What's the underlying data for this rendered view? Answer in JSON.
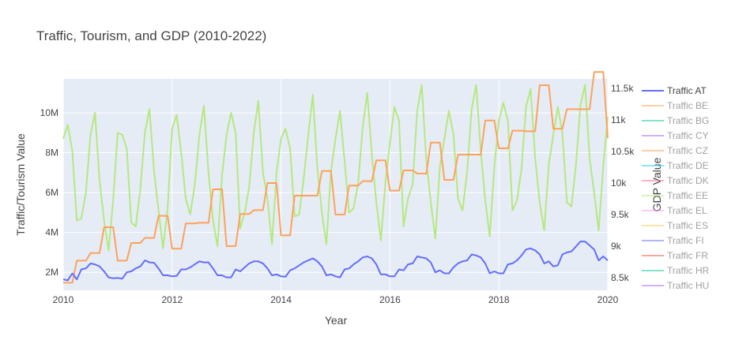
{
  "chart_data": {
    "type": "line",
    "title": "Traffic, Tourism, and GDP (2010-2022)",
    "xlabel": "Year",
    "ylabel_left": "Traffic/Tourism Value",
    "ylabel_right": "GDP Value",
    "xlim": [
      2010,
      2020
    ],
    "x_ticks": [
      2010,
      2012,
      2014,
      2016,
      2018,
      2020
    ],
    "x_tick_labels": [
      "2010",
      "2012",
      "2014",
      "2016",
      "2018",
      "2020"
    ],
    "y_left_lim": [
      1100000,
      11700000
    ],
    "y_left_ticks": [
      2000000,
      4000000,
      6000000,
      8000000,
      10000000
    ],
    "y_left_tick_labels": [
      "2M",
      "4M",
      "6M",
      "8M",
      "10M"
    ],
    "y_right_lim": [
      8300,
      11650
    ],
    "y_right_ticks": [
      8500,
      9000,
      9500,
      10000,
      10500,
      11000,
      11500
    ],
    "y_right_tick_labels": [
      "8.5k",
      "9k",
      "9.5k",
      "10k",
      "10.5k",
      "11k",
      "11.5k"
    ],
    "grid": true,
    "legend_position": "right",
    "plot_background": "#e5ecf6",
    "series": [
      {
        "name": "Traffic AT",
        "axis": "left",
        "color": "#636efa",
        "x": [
          2010.0,
          2010.083,
          2010.167,
          2010.25,
          2010.333,
          2010.417,
          2010.5,
          2010.583,
          2010.667,
          2010.75,
          2010.833,
          2010.917,
          2011.0,
          2011.083,
          2011.167,
          2011.25,
          2011.333,
          2011.417,
          2011.5,
          2011.583,
          2011.667,
          2011.75,
          2011.833,
          2011.917,
          2012.0,
          2012.083,
          2012.167,
          2012.25,
          2012.333,
          2012.417,
          2012.5,
          2012.583,
          2012.667,
          2012.75,
          2012.833,
          2012.917,
          2013.0,
          2013.083,
          2013.167,
          2013.25,
          2013.333,
          2013.417,
          2013.5,
          2013.583,
          2013.667,
          2013.75,
          2013.833,
          2013.917,
          2014.0,
          2014.083,
          2014.167,
          2014.25,
          2014.333,
          2014.417,
          2014.5,
          2014.583,
          2014.667,
          2014.75,
          2014.833,
          2014.917,
          2015.0,
          2015.083,
          2015.167,
          2015.25,
          2015.333,
          2015.417,
          2015.5,
          2015.583,
          2015.667,
          2015.75,
          2015.833,
          2015.917,
          2016.0,
          2016.083,
          2016.167,
          2016.25,
          2016.333,
          2016.417,
          2016.5,
          2016.583,
          2016.667,
          2016.75,
          2016.833,
          2016.917,
          2017.0,
          2017.083,
          2017.167,
          2017.25,
          2017.333,
          2017.417,
          2017.5,
          2017.583,
          2017.667,
          2017.75,
          2017.833,
          2017.917,
          2018.0,
          2018.083,
          2018.167,
          2018.25,
          2018.333,
          2018.417,
          2018.5,
          2018.583,
          2018.667,
          2018.75,
          2018.833,
          2018.917,
          2019.0,
          2019.083,
          2019.167,
          2019.25,
          2019.333,
          2019.417,
          2019.5,
          2019.583,
          2019.667,
          2019.75,
          2019.833,
          2019.917,
          2020.0
        ],
        "y": [
          1650000,
          1600000,
          1950000,
          1650000,
          2150000,
          2200000,
          2450000,
          2400000,
          2300000,
          2050000,
          1750000,
          1700000,
          1720000,
          1680000,
          2000000,
          2050000,
          2200000,
          2300000,
          2600000,
          2500000,
          2480000,
          2200000,
          1850000,
          1850000,
          1800000,
          1820000,
          2150000,
          2150000,
          2250000,
          2400000,
          2550000,
          2500000,
          2500000,
          2200000,
          1850000,
          1850000,
          1750000,
          1750000,
          2150000,
          2050000,
          2250000,
          2450000,
          2550000,
          2550000,
          2450000,
          2200000,
          1850000,
          1900000,
          1800000,
          1780000,
          2100000,
          2200000,
          2350000,
          2500000,
          2600000,
          2700000,
          2550000,
          2300000,
          1850000,
          1900000,
          1800000,
          1750000,
          2150000,
          2200000,
          2400000,
          2550000,
          2750000,
          2800000,
          2700000,
          2400000,
          1900000,
          1900000,
          1800000,
          1800000,
          2150000,
          2100000,
          2400000,
          2450000,
          2800000,
          2750000,
          2700000,
          2500000,
          2000000,
          2100000,
          1950000,
          1950000,
          2250000,
          2450000,
          2550000,
          2600000,
          2900000,
          2850000,
          2750000,
          2450000,
          1950000,
          2050000,
          1950000,
          1950000,
          2400000,
          2450000,
          2600000,
          2850000,
          3150000,
          3200000,
          3100000,
          2900000,
          2450000,
          2550000,
          2300000,
          2350000,
          2900000,
          3000000,
          3050000,
          3300000,
          3550000,
          3550000,
          3350000,
          3150000,
          2600000,
          2800000,
          2600000
        ]
      },
      {
        "name": "Traffic BE",
        "axis": "right",
        "color": "#ffa15a",
        "x": [
          2010.0,
          2010.083,
          2010.167,
          2010.25,
          2010.333,
          2010.417,
          2010.5,
          2010.583,
          2010.667,
          2010.75,
          2010.833,
          2010.917,
          2011.0,
          2011.083,
          2011.167,
          2011.25,
          2011.333,
          2011.417,
          2011.5,
          2011.583,
          2011.667,
          2011.75,
          2011.833,
          2011.917,
          2012.0,
          2012.083,
          2012.167,
          2012.25,
          2012.333,
          2012.417,
          2012.5,
          2012.583,
          2012.667,
          2012.75,
          2012.833,
          2012.917,
          2013.0,
          2013.083,
          2013.167,
          2013.25,
          2013.333,
          2013.417,
          2013.5,
          2013.583,
          2013.667,
          2013.75,
          2013.833,
          2013.917,
          2014.0,
          2014.083,
          2014.167,
          2014.25,
          2014.333,
          2014.417,
          2014.5,
          2014.583,
          2014.667,
          2014.75,
          2014.833,
          2014.917,
          2015.0,
          2015.083,
          2015.167,
          2015.25,
          2015.333,
          2015.417,
          2015.5,
          2015.583,
          2015.667,
          2015.75,
          2015.833,
          2015.917,
          2016.0,
          2016.083,
          2016.167,
          2016.25,
          2016.333,
          2016.417,
          2016.5,
          2016.583,
          2016.667,
          2016.75,
          2016.833,
          2016.917,
          2017.0,
          2017.083,
          2017.167,
          2017.25,
          2017.333,
          2017.417,
          2017.5,
          2017.583,
          2017.667,
          2017.75,
          2017.833,
          2017.917,
          2018.0,
          2018.083,
          2018.167,
          2018.25,
          2018.333,
          2018.417,
          2018.5,
          2018.583,
          2018.667,
          2018.75,
          2018.833,
          2018.917,
          2019.0,
          2019.083,
          2019.167,
          2019.25,
          2019.333,
          2019.417,
          2019.5,
          2019.583,
          2019.667,
          2019.75,
          2019.833,
          2019.917,
          2020.0
        ],
        "y": [
          8420,
          8420,
          8420,
          8770,
          8770,
          8770,
          8890,
          8890,
          8890,
          9300,
          9300,
          9300,
          8770,
          8770,
          8770,
          9050,
          9050,
          9050,
          9130,
          9130,
          9130,
          9480,
          9480,
          9480,
          8960,
          8960,
          8960,
          9360,
          9360,
          9360,
          9370,
          9370,
          9370,
          9900,
          9900,
          9900,
          9000,
          9000,
          9000,
          9510,
          9510,
          9510,
          9570,
          9570,
          9570,
          10000,
          10000,
          10000,
          9170,
          9170,
          9170,
          9800,
          9800,
          9800,
          9800,
          9800,
          9800,
          10190,
          10190,
          10190,
          9500,
          9500,
          9500,
          9960,
          9960,
          9960,
          10030,
          10030,
          10030,
          10360,
          10360,
          10360,
          9880,
          9880,
          9880,
          10200,
          10200,
          10200,
          10150,
          10150,
          10150,
          10640,
          10640,
          10640,
          10050,
          10050,
          10050,
          10450,
          10450,
          10450,
          10450,
          10450,
          10450,
          10990,
          10990,
          10990,
          10550,
          10550,
          10550,
          10830,
          10830,
          10830,
          10820,
          10820,
          10820,
          11550,
          11550,
          11550,
          10860,
          10860,
          10860,
          11170,
          11170,
          11170,
          11170,
          11170,
          11170,
          11760,
          11760,
          11760,
          10710
        ]
      },
      {
        "name": "Traffic EE",
        "axis": "left",
        "color": "#b6e880",
        "x": [
          2010.0,
          2010.083,
          2010.167,
          2010.25,
          2010.333,
          2010.417,
          2010.5,
          2010.583,
          2010.667,
          2010.75,
          2010.833,
          2010.917,
          2011.0,
          2011.083,
          2011.167,
          2011.25,
          2011.333,
          2011.417,
          2011.5,
          2011.583,
          2011.667,
          2011.75,
          2011.833,
          2011.917,
          2012.0,
          2012.083,
          2012.167,
          2012.25,
          2012.333,
          2012.417,
          2012.5,
          2012.583,
          2012.667,
          2012.75,
          2012.833,
          2012.917,
          2013.0,
          2013.083,
          2013.167,
          2013.25,
          2013.333,
          2013.417,
          2013.5,
          2013.583,
          2013.667,
          2013.75,
          2013.833,
          2013.917,
          2014.0,
          2014.083,
          2014.167,
          2014.25,
          2014.333,
          2014.417,
          2014.5,
          2014.583,
          2014.667,
          2014.75,
          2014.833,
          2014.917,
          2015.0,
          2015.083,
          2015.167,
          2015.25,
          2015.333,
          2015.417,
          2015.5,
          2015.583,
          2015.667,
          2015.75,
          2015.833,
          2015.917,
          2016.0,
          2016.083,
          2016.167,
          2016.25,
          2016.333,
          2016.417,
          2016.5,
          2016.583,
          2016.667,
          2016.75,
          2016.833,
          2016.917,
          2017.0,
          2017.083,
          2017.167,
          2017.25,
          2017.333,
          2017.417,
          2017.5,
          2017.583,
          2017.667,
          2017.75,
          2017.833,
          2017.917,
          2018.0,
          2018.083,
          2018.167,
          2018.25,
          2018.333,
          2018.417,
          2018.5,
          2018.583,
          2018.667,
          2018.75,
          2018.833,
          2018.917,
          2019.0,
          2019.083,
          2019.167,
          2019.25,
          2019.333,
          2019.417,
          2019.5,
          2019.583,
          2019.667,
          2019.75,
          2019.833,
          2019.917,
          2020.0
        ],
        "y": [
          8700000,
          9400000,
          8100000,
          4600000,
          4700000,
          6000000,
          8900000,
          10000000,
          6600000,
          4600000,
          3100000,
          5600000,
          9000000,
          8900000,
          8200000,
          4500000,
          4300000,
          6200000,
          9000000,
          10200000,
          7100000,
          5100000,
          3200000,
          5200000,
          9200000,
          9900000,
          8000000,
          5700000,
          4900000,
          6400000,
          8900000,
          10350000,
          7000000,
          4600000,
          3300000,
          6900000,
          8900000,
          10000000,
          9000000,
          4200000,
          5000000,
          6300000,
          9000000,
          10600000,
          7000000,
          5700000,
          3400000,
          7000000,
          8700000,
          9200000,
          8200000,
          4800000,
          4900000,
          6700000,
          8900000,
          10900000,
          7200000,
          5000000,
          3400000,
          7100000,
          8700000,
          10100000,
          7600000,
          5000000,
          5200000,
          6500000,
          9300000,
          11000000,
          7900000,
          5500000,
          3600000,
          6500000,
          8500000,
          10300000,
          9600000,
          4300000,
          5700000,
          6400000,
          10100000,
          11400000,
          7600000,
          5500000,
          3700000,
          7300000,
          8700000,
          10100000,
          8900000,
          5700000,
          5100000,
          7000000,
          10200000,
          11400000,
          8100000,
          5600000,
          3800000,
          7300000,
          9600000,
          10500000,
          9600000,
          5100000,
          5600000,
          7200000,
          10300000,
          11200000,
          7700000,
          5500000,
          4100000,
          7400000,
          8900000,
          10300000,
          9000000,
          5500000,
          5300000,
          7400000,
          10400000,
          11400000,
          7700000,
          6000000,
          4100000,
          7300000,
          9800000
        ]
      }
    ],
    "legend": [
      {
        "name": "Traffic AT",
        "color": "#636efa",
        "visible": true
      },
      {
        "name": "Traffic BE",
        "color": "#ffa15a",
        "visible": false
      },
      {
        "name": "Traffic BG",
        "color": "#00cc96",
        "visible": false
      },
      {
        "name": "Traffic CY",
        "color": "#ab63fa",
        "visible": false
      },
      {
        "name": "Traffic CZ",
        "color": "#ffa15a",
        "visible": false
      },
      {
        "name": "Traffic DE",
        "color": "#19d3f3",
        "visible": false
      },
      {
        "name": "Traffic DK",
        "color": "#ff6692",
        "visible": false
      },
      {
        "name": "Traffic EE",
        "color": "#b6e880",
        "visible": false
      },
      {
        "name": "Traffic EL",
        "color": "#ff97ff",
        "visible": false
      },
      {
        "name": "Traffic ES",
        "color": "#fecb52",
        "visible": false
      },
      {
        "name": "Traffic FI",
        "color": "#636efa",
        "visible": false
      },
      {
        "name": "Traffic FR",
        "color": "#ef553b",
        "visible": false
      },
      {
        "name": "Traffic HR",
        "color": "#00cc96",
        "visible": false
      },
      {
        "name": "Traffic HU",
        "color": "#ab63fa",
        "visible": false
      }
    ]
  }
}
